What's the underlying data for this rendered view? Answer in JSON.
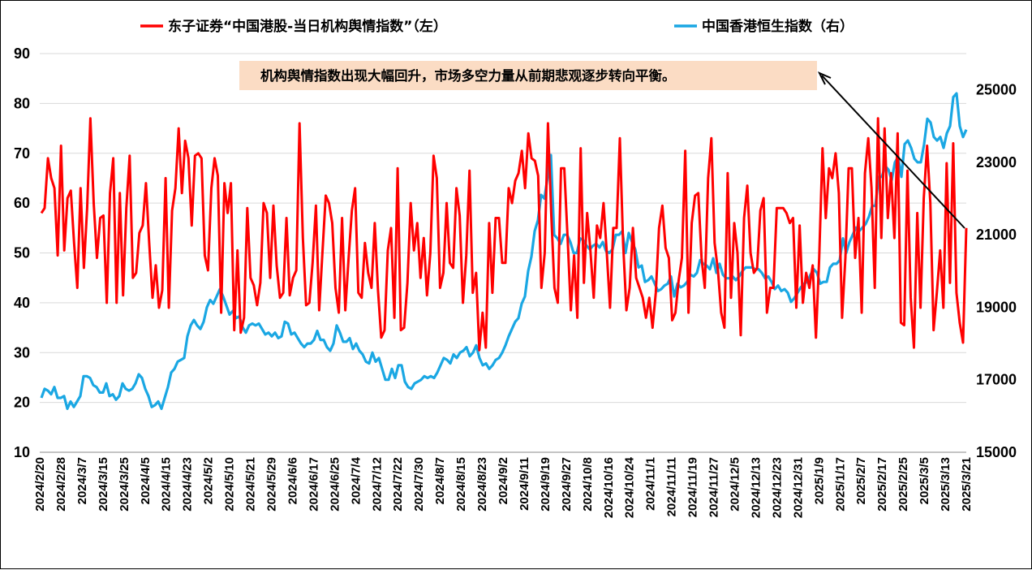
{
  "colors": {
    "left_series": "#ff0000",
    "right_series": "#1aa7e3",
    "annotation_bg": "#fbdcc4"
  },
  "legend": {
    "left": "东子证券“中国港股-当日机构舆情指数”（左）",
    "right": "中国香港恒生指数（右）"
  },
  "annotation": "机构舆情指数出现大幅回升，市场多空力量从前期悲观逐步转向平衡。",
  "chart_data": {
    "type": "line",
    "legend_position": "top",
    "grid": "horizontal",
    "x_tick_labels": [
      "2024/2/20",
      "2024/2/28",
      "2024/3/7",
      "2024/3/15",
      "2024/3/25",
      "2024/4/5",
      "2024/4/15",
      "2024/4/23",
      "2024/5/2",
      "2024/5/10",
      "2024/5/21",
      "2024/5/29",
      "2024/6/6",
      "2024/6/17",
      "2024/6/25",
      "2024/7/4",
      "2024/7/12",
      "2024/7/22",
      "2024/7/30",
      "2024/8/7",
      "2024/8/15",
      "2024/8/23",
      "2024/9/2",
      "2024/9/11",
      "2024/9/19",
      "2024/9/27",
      "2024/10/8",
      "2024/10/16",
      "2024/10/24",
      "2024/11/1",
      "2024/11/11",
      "2024/11/19",
      "2024/11/27",
      "2024/12/5",
      "2024/12/13",
      "2024/12/23",
      "2024/12/31",
      "2025/1/9",
      "2025/1/17",
      "2025/2/7",
      "2025/2/17",
      "2025/2/25",
      "2025/3/5",
      "2025/3/13",
      "2025/3/21"
    ],
    "y_left": {
      "ticks": [
        10,
        20,
        30,
        40,
        50,
        60,
        70,
        80,
        90
      ],
      "ylim": [
        10,
        90
      ]
    },
    "y_right": {
      "ticks": [
        15000,
        17000,
        19000,
        21000,
        23000,
        25000
      ],
      "ylim": [
        15000,
        26000
      ]
    },
    "series": [
      {
        "name": "东子证券“中国港股-当日机构舆情指数”（左）",
        "axis": "left",
        "values": [
          58,
          59,
          69,
          65,
          63,
          49.5,
          71.5,
          50.5,
          61,
          62.5,
          52,
          43,
          63,
          47,
          59,
          77,
          60,
          49,
          57,
          57.5,
          40,
          62,
          69,
          40,
          62,
          41.5,
          59,
          69.5,
          45,
          46,
          54,
          55.5,
          64,
          52,
          41,
          47.5,
          39,
          42.5,
          65,
          39,
          58.5,
          63,
          75,
          62,
          72.5,
          69,
          55.5,
          69.5,
          70,
          69,
          49.5,
          46.5,
          63,
          69,
          65.5,
          38,
          64,
          58,
          64,
          34.5,
          50.5,
          34,
          37,
          59,
          45,
          43.5,
          39.5,
          44,
          60,
          58,
          45,
          59.5,
          47.5,
          41,
          42,
          57,
          41.5,
          45,
          46.5,
          76,
          53,
          39.5,
          40,
          48,
          59.5,
          38.5,
          50,
          61.5,
          60,
          56,
          43,
          38,
          57,
          38.5,
          49,
          58.5,
          63,
          42,
          41,
          52,
          46,
          43,
          56,
          42.5,
          33,
          34.5,
          50.5,
          55,
          37,
          67,
          34.5,
          35,
          44,
          60,
          50.5,
          56,
          45,
          53,
          41.5,
          50,
          69.5,
          65,
          43,
          46,
          60,
          48,
          47,
          63,
          57.5,
          40,
          49.5,
          66.5,
          42,
          46,
          30.5,
          38,
          31,
          56,
          42,
          57,
          57,
          48,
          48,
          63,
          60,
          64.5,
          66,
          70.5,
          63,
          74,
          69,
          68.5,
          65.5,
          43,
          50,
          76,
          58,
          43,
          40,
          67,
          67,
          53,
          38.5,
          49.5,
          37,
          71,
          44,
          58,
          50.5,
          41,
          55.5,
          53,
          60,
          50,
          39,
          55,
          55,
          73,
          52,
          38.5,
          43,
          55,
          45,
          43,
          41,
          37,
          41,
          35,
          42,
          55,
          59.5,
          51,
          49,
          36.5,
          38,
          44.5,
          49,
          70.5,
          38,
          56,
          61.5,
          62,
          49,
          43,
          65,
          73,
          52,
          46.5,
          38,
          35,
          66,
          41,
          56,
          50,
          33.5,
          57,
          63.5,
          50,
          46,
          47,
          58.5,
          61,
          38,
          43,
          43,
          59,
          59,
          59,
          58,
          56,
          57,
          39,
          55.5,
          40,
          46,
          43,
          47.5,
          33,
          49,
          71,
          57,
          67,
          65,
          70,
          62,
          37,
          49,
          67,
          67,
          49,
          57,
          38,
          66,
          73,
          63,
          43,
          77,
          53,
          75,
          57,
          66,
          53,
          74,
          36,
          35.5,
          66.5,
          41,
          31,
          58,
          39,
          61,
          71.5,
          60,
          34.5,
          42,
          50.5,
          39,
          68,
          44,
          72,
          42,
          36,
          32,
          55
        ]
      },
      {
        "name": "中国香港恒生指数（右）",
        "axis": "right",
        "values": [
          16500,
          16750,
          16700,
          16600,
          16800,
          16500,
          16500,
          16550,
          16200,
          16400,
          16250,
          16400,
          16550,
          17100,
          17100,
          17050,
          16850,
          16800,
          16650,
          16650,
          16900,
          16550,
          16600,
          16450,
          16550,
          16900,
          16750,
          16700,
          16750,
          16900,
          17150,
          17050,
          16750,
          16550,
          16250,
          16300,
          16400,
          16200,
          16500,
          16800,
          17200,
          17300,
          17500,
          17550,
          17600,
          18200,
          18500,
          18650,
          18500,
          18400,
          18600,
          19000,
          19200,
          19100,
          19300,
          19500,
          19300,
          19050,
          18800,
          18900,
          18700,
          18750,
          18450,
          18300,
          18500,
          18550,
          18500,
          18550,
          18400,
          18250,
          18300,
          18200,
          18300,
          18150,
          18200,
          18600,
          18550,
          18250,
          18300,
          18150,
          18000,
          17900,
          18000,
          18000,
          18100,
          18350,
          18100,
          18100,
          17900,
          17800,
          18000,
          18500,
          18300,
          18050,
          18050,
          18150,
          17850,
          18000,
          17800,
          17700,
          17500,
          17450,
          17750,
          17500,
          17600,
          17300,
          17000,
          17000,
          17300,
          17050,
          17400,
          17400,
          16950,
          16800,
          16750,
          16900,
          16950,
          17000,
          17100,
          17050,
          17100,
          17050,
          17200,
          17400,
          17600,
          17550,
          17450,
          17700,
          17600,
          17750,
          17800,
          17900,
          17650,
          17750,
          17950,
          17600,
          17400,
          17450,
          17300,
          17400,
          17550,
          17600,
          17750,
          17950,
          18200,
          18400,
          18600,
          18700,
          19100,
          19300,
          20000,
          20400,
          21100,
          21400,
          22100,
          22000,
          22600,
          23200,
          21000,
          20900,
          20750,
          21000,
          21000,
          20800,
          20500,
          20500,
          20900,
          20850,
          20700,
          20600,
          20700,
          20750,
          20650,
          20800,
          20550,
          20500,
          20600,
          21000,
          21000,
          21100,
          20500,
          21050,
          20800,
          20600,
          20100,
          20150,
          19700,
          19750,
          19850,
          19650,
          19450,
          19500,
          19600,
          19650,
          19850,
          19300,
          19650,
          19550,
          19600,
          19700,
          19900,
          19850,
          19950,
          20300,
          20200,
          20150,
          20050,
          20350,
          19950,
          20200,
          19900,
          19800,
          19800,
          19850,
          19750,
          19850,
          20000,
          20100,
          20100,
          20100,
          20050,
          20050,
          19950,
          19800,
          19850,
          19700,
          19500,
          19600,
          19450,
          19500,
          19400,
          19150,
          19250,
          19400,
          19550,
          19650,
          19700,
          19900,
          20050,
          19950,
          19650,
          19700,
          19700,
          20100,
          20200,
          20200,
          20300,
          20900,
          20500,
          20800,
          21000,
          21200,
          21100,
          21200,
          21300,
          21500,
          21800,
          21800,
          22600,
          22600,
          22900,
          22800,
          22500,
          23000,
          23150,
          22600,
          23500,
          23600,
          23400,
          23100,
          23000,
          23000,
          23500,
          24200,
          24100,
          23700,
          23600,
          23700,
          23400,
          23800,
          24000,
          24800,
          24900,
          24000,
          23700,
          23900
        ]
      }
    ]
  }
}
